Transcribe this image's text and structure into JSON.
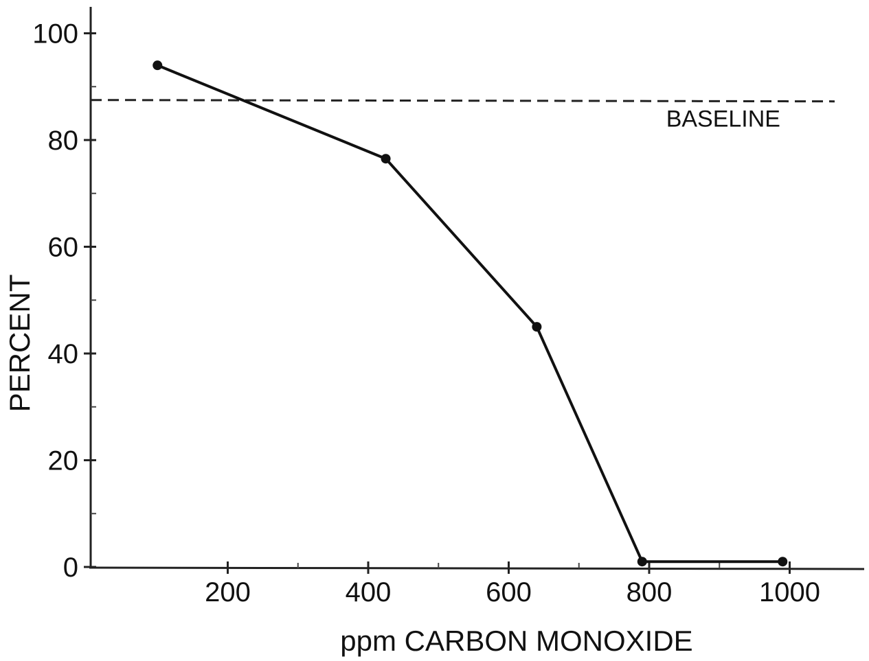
{
  "chart_data": {
    "type": "line",
    "title": "",
    "xlabel": "ppm CARBON MONOXIDE",
    "ylabel": "PERCENT",
    "xlim": [
      0,
      1100
    ],
    "ylim": [
      0,
      100
    ],
    "x_ticks": [
      200,
      400,
      600,
      800,
      1000
    ],
    "x_minor_ticks": [
      300,
      500,
      700,
      900
    ],
    "y_ticks": [
      0,
      20,
      40,
      60,
      80,
      100
    ],
    "y_minor_ticks": [
      10,
      30,
      50,
      70,
      90
    ],
    "x_tick_labels": [
      "200",
      "400",
      "600",
      "800",
      "1000"
    ],
    "y_tick_labels": [
      "0",
      "20",
      "40",
      "60",
      "80",
      "100"
    ],
    "grid": false,
    "series": [
      {
        "x": [
          100,
          425,
          640,
          790,
          990
        ],
        "y": [
          94,
          76.5,
          45,
          1,
          1
        ],
        "color": "#111111",
        "marker": "circle"
      }
    ],
    "reference_lines": [
      {
        "y": 87.5,
        "style": "dashed",
        "label": "BASELINE"
      }
    ]
  }
}
